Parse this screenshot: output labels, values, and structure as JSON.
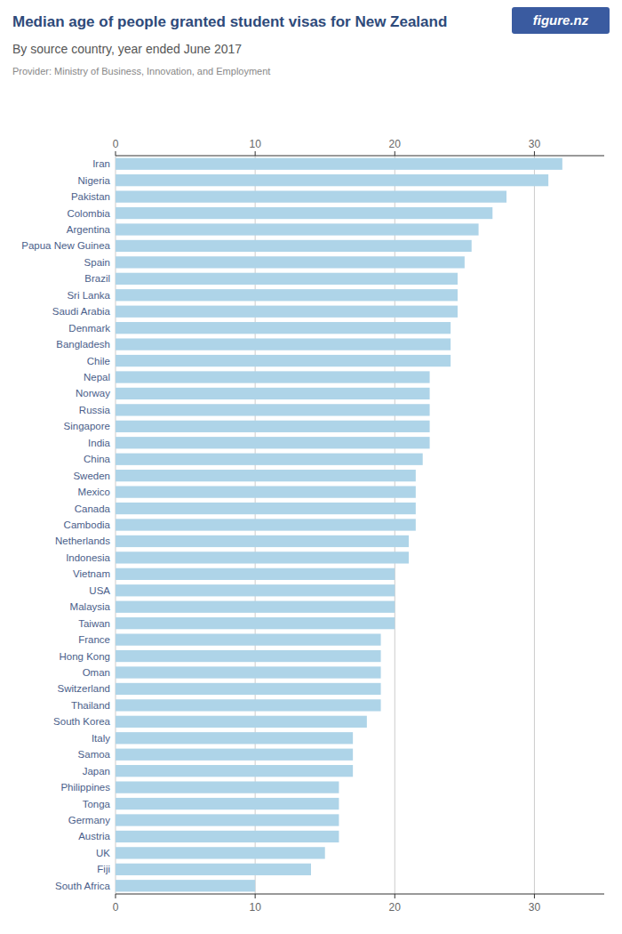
{
  "chart_data": {
    "type": "bar",
    "orientation": "horizontal",
    "title": "Median age of people granted student visas for New Zealand",
    "subtitle": "By source country, year ended June 2017",
    "annotations": [
      "Provider: Ministry of Business, Innovation, and Employment",
      "figure.nz"
    ],
    "categories": [
      "Iran",
      "Nigeria",
      "Pakistan",
      "Colombia",
      "Argentina",
      "Papua New Guinea",
      "Spain",
      "Brazil",
      "Sri Lanka",
      "Saudi Arabia",
      "Denmark",
      "Bangladesh",
      "Chile",
      "Nepal",
      "Norway",
      "Russia",
      "Singapore",
      "India",
      "China",
      "Sweden",
      "Mexico",
      "Canada",
      "Cambodia",
      "Netherlands",
      "Indonesia",
      "Vietnam",
      "USA",
      "Malaysia",
      "Taiwan",
      "France",
      "Hong Kong",
      "Oman",
      "Switzerland",
      "Thailand",
      "South Korea",
      "Italy",
      "Samoa",
      "Japan",
      "Philippines",
      "Tonga",
      "Germany",
      "Austria",
      "UK",
      "Fiji",
      "South Africa"
    ],
    "values": [
      32,
      31,
      28,
      27,
      26,
      25.5,
      25,
      24.5,
      24.5,
      24.5,
      24,
      24,
      24,
      22.5,
      22.5,
      22.5,
      22.5,
      22.5,
      22,
      21.5,
      21.5,
      21.5,
      21.5,
      21,
      21,
      20,
      20,
      20,
      20,
      19,
      19,
      19,
      19,
      19,
      18,
      17,
      17,
      17,
      16,
      16,
      16,
      16,
      15,
      14,
      10
    ],
    "color": "#aed4e8",
    "xlim": [
      0,
      35
    ],
    "xticks": [
      0,
      10,
      20,
      30
    ],
    "grid": true
  }
}
